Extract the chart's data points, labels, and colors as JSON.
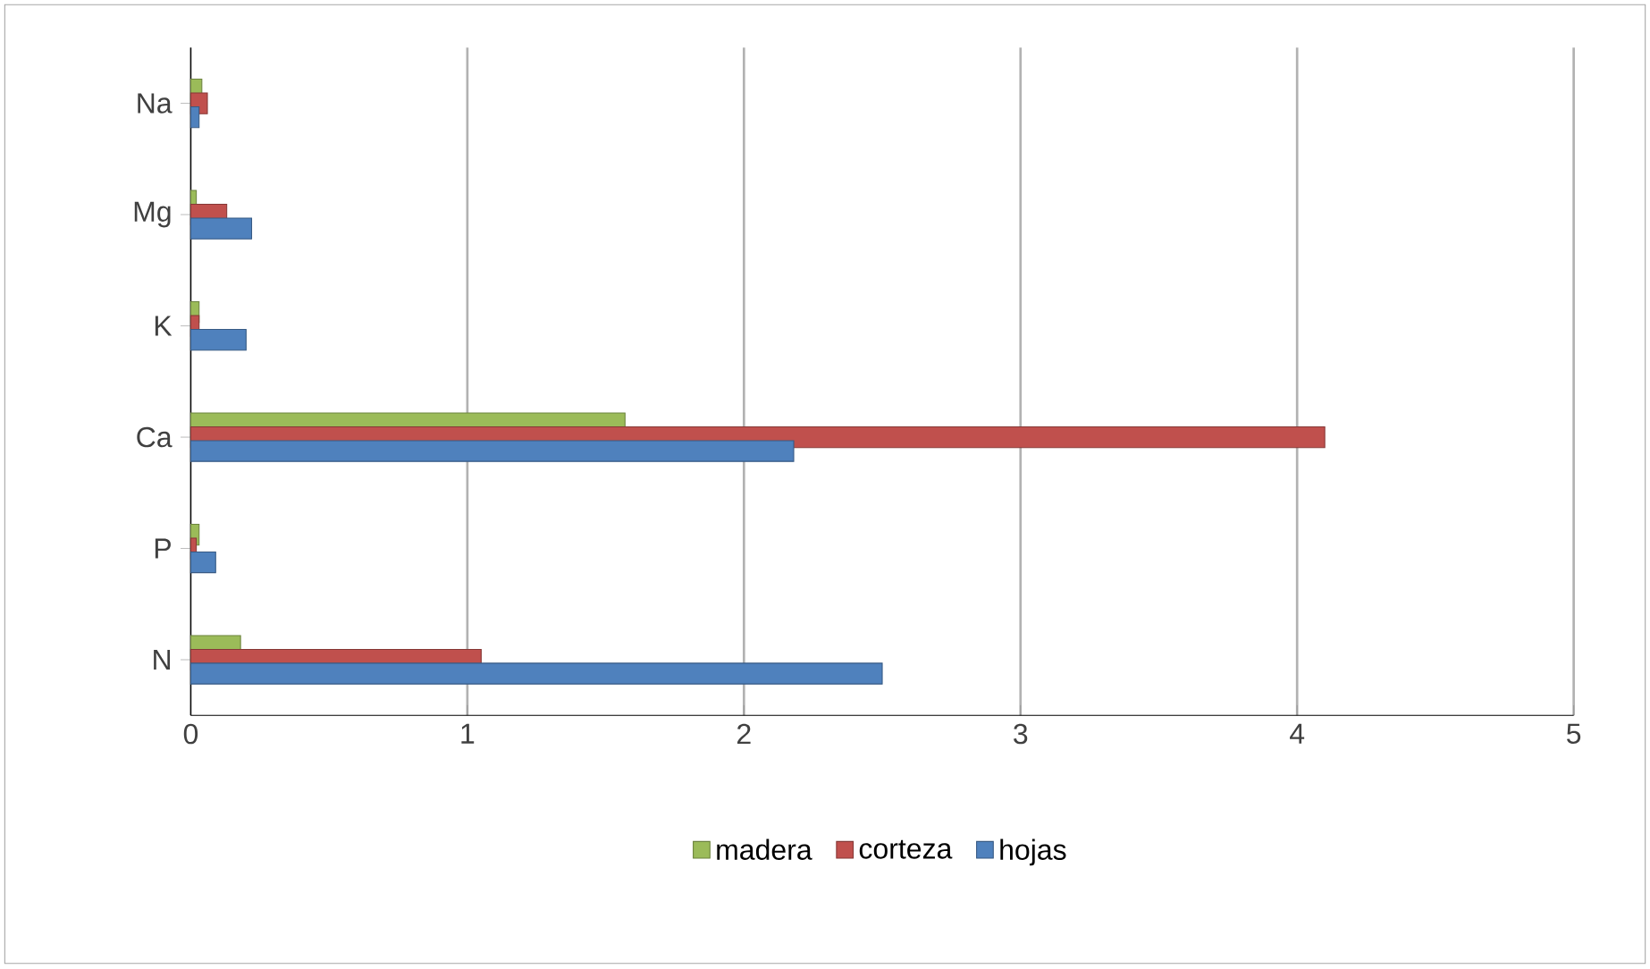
{
  "chart_data": {
    "type": "bar",
    "orientation": "horizontal",
    "categories": [
      "Na",
      "Mg",
      "K",
      "Ca",
      "P",
      "N"
    ],
    "series": [
      {
        "name": "madera",
        "color": "#9bbb59",
        "values": [
          0.04,
          0.02,
          0.03,
          1.57,
          0.03,
          0.18
        ]
      },
      {
        "name": "corteza",
        "color": "#c0504d",
        "values": [
          0.06,
          0.13,
          0.03,
          4.1,
          0.02,
          1.05
        ]
      },
      {
        "name": "hojas",
        "color": "#4f81bd",
        "values": [
          0.03,
          0.22,
          0.2,
          2.18,
          0.09,
          2.5
        ]
      }
    ],
    "xlim": [
      0,
      5
    ],
    "xticks": [
      0,
      1,
      2,
      3,
      4,
      5
    ],
    "grid": "x",
    "legend": "bottom"
  }
}
